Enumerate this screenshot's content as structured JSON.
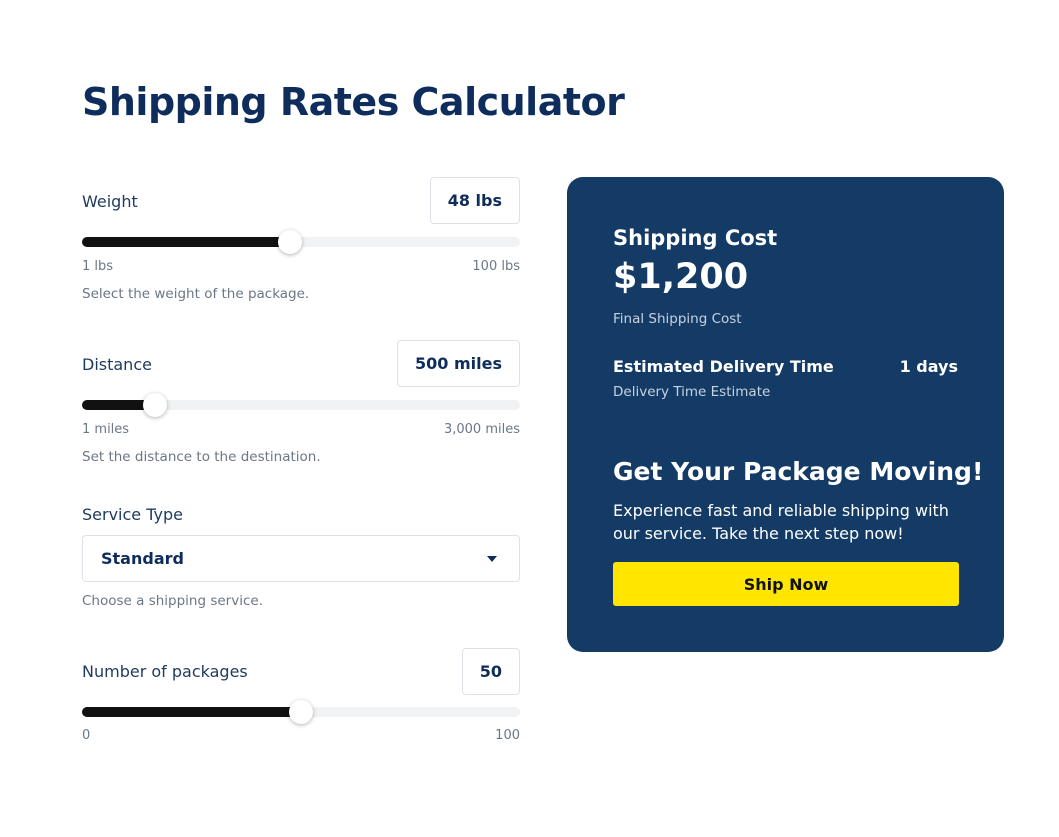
{
  "title": "Shipping Rates Calculator",
  "weight": {
    "label": "Weight",
    "display": "48 lbs",
    "value": 48,
    "min": 1,
    "max": 100,
    "min_label": "1 lbs",
    "max_label": "100 lbs",
    "help": "Select the weight of the package."
  },
  "distance": {
    "label": "Distance",
    "display": "500 miles",
    "value": 500,
    "min": 1,
    "max": 3000,
    "min_label": "1 miles",
    "max_label": "3,000 miles",
    "help": "Set the distance to the destination."
  },
  "service": {
    "label": "Service Type",
    "selected": "Standard",
    "help": "Choose a shipping service."
  },
  "packages": {
    "label": "Number of packages",
    "display": "50",
    "value": 50,
    "min": 0,
    "max": 100,
    "min_label": "0",
    "max_label": "100"
  },
  "result": {
    "cost_title": "Shipping Cost",
    "cost": "$1,200",
    "cost_caption": "Final Shipping Cost",
    "delivery_title": "Estimated Delivery Time",
    "delivery_value": "1 days",
    "delivery_caption": "Delivery Time Estimate",
    "cta_title": "Get Your Package Moving!",
    "cta_text": "Experience fast and reliable shipping with our service. Take the next step now!",
    "cta_button": "Ship Now"
  },
  "colors": {
    "card": "#143a66",
    "button": "#ffe600",
    "title": "#0f2d5c"
  }
}
